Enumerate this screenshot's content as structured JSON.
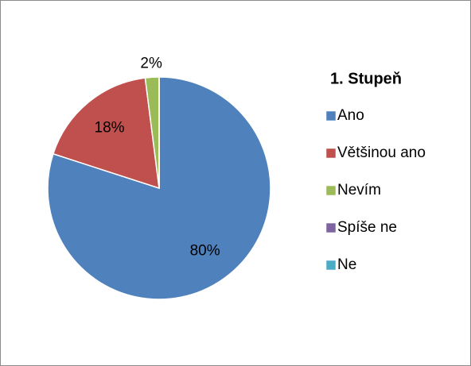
{
  "chart_data": {
    "type": "pie",
    "title": "1. Stupeň",
    "categories": [
      "Ano",
      "Většinou ano",
      "Nevím",
      "Spíše ne",
      "Ne"
    ],
    "values": [
      80,
      18,
      2,
      0,
      0
    ],
    "value_labels": [
      "80%",
      "18%",
      "2%",
      null,
      null
    ],
    "colors": [
      "#4f81bd",
      "#c0504d",
      "#9bbb59",
      "#8064a2",
      "#4bacc6"
    ],
    "legend": "right"
  }
}
